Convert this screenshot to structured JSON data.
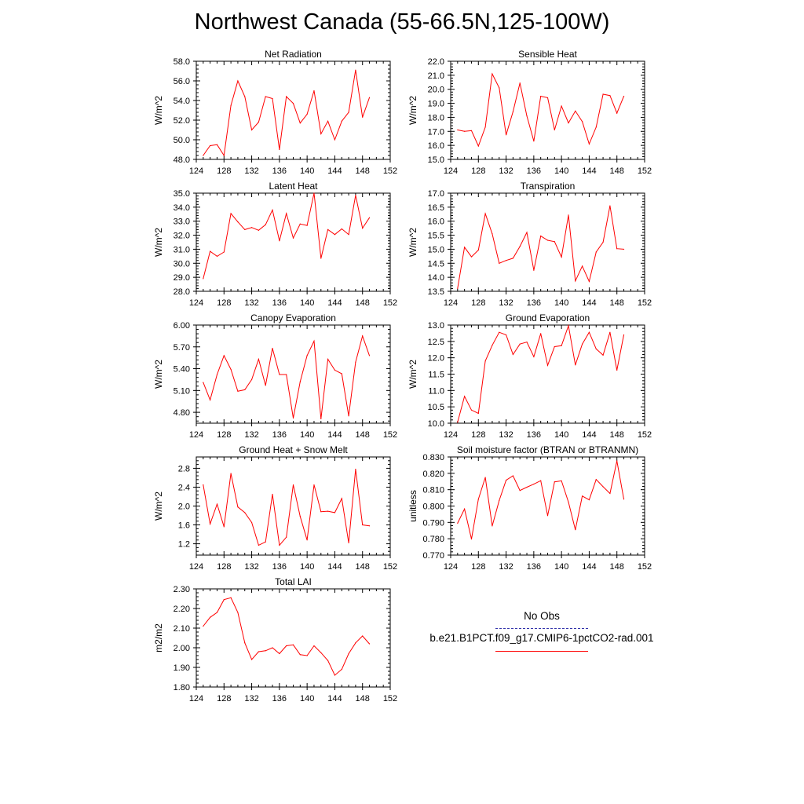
{
  "title": "Northwest Canada (55-66.5N,125-100W)",
  "colors": {
    "model_line": "#ff0000",
    "obs_line": "#3333aa"
  },
  "legend": {
    "entries": [
      {
        "label": "No Obs",
        "style": "dashed",
        "color": "#3333aa"
      },
      {
        "label": "b.e21.B1PCT.f09_g17.CMIP6-1pctCO2-rad.001",
        "style": "solid",
        "color": "#ff0000"
      }
    ]
  },
  "chart_data": [
    {
      "type": "line",
      "title": "Net Radiation",
      "ylabel": "W/m^2",
      "xlim": [
        124,
        152
      ],
      "ylim": [
        48.0,
        58.0
      ],
      "xticks": [
        "124",
        "128",
        "132",
        "136",
        "140",
        "144",
        "148",
        "152"
      ],
      "yticks": [
        "48.0",
        "50.0",
        "52.0",
        "54.0",
        "56.0",
        "58.0"
      ],
      "x": [
        125,
        126,
        127,
        128,
        129,
        130,
        131,
        132,
        133,
        134,
        135,
        136,
        137,
        138,
        139,
        140,
        141,
        142,
        143,
        144,
        145,
        146,
        147,
        148,
        149
      ],
      "series": [
        {
          "values": [
            48.4,
            49.4,
            49.5,
            48.4,
            53.5,
            56.0,
            54.4,
            51.0,
            51.8,
            54.4,
            54.2,
            49.0,
            54.4,
            53.7,
            51.7,
            52.6,
            55.0,
            50.6,
            51.9,
            50.0,
            51.9,
            52.8,
            57.1,
            52.3,
            54.3
          ]
        }
      ]
    },
    {
      "type": "line",
      "title": "Sensible Heat",
      "ylabel": "W/m^2",
      "xlim": [
        124,
        152
      ],
      "ylim": [
        15.0,
        22.0
      ],
      "xticks": [
        "124",
        "128",
        "132",
        "136",
        "140",
        "144",
        "148",
        "152"
      ],
      "yticks": [
        "15.0",
        "16.0",
        "17.0",
        "18.0",
        "19.0",
        "20.0",
        "21.0",
        "22.0"
      ],
      "x": [
        125,
        126,
        127,
        128,
        129,
        130,
        131,
        132,
        133,
        134,
        135,
        136,
        137,
        138,
        139,
        140,
        141,
        142,
        143,
        144,
        145,
        146,
        147,
        148,
        149
      ],
      "series": [
        {
          "values": [
            17.1,
            17.0,
            17.05,
            15.95,
            17.3,
            21.1,
            20.1,
            16.75,
            18.4,
            20.45,
            18.1,
            16.3,
            19.5,
            19.4,
            17.1,
            18.8,
            17.6,
            18.45,
            17.7,
            16.1,
            17.3,
            19.65,
            19.55,
            18.3,
            19.5
          ]
        }
      ]
    },
    {
      "type": "line",
      "title": "Latent Heat",
      "ylabel": "W/m^2",
      "xlim": [
        124,
        152
      ],
      "ylim": [
        28.0,
        35.0
      ],
      "xticks": [
        "124",
        "128",
        "132",
        "136",
        "140",
        "144",
        "148",
        "152"
      ],
      "yticks": [
        "28.0",
        "29.0",
        "30.0",
        "31.0",
        "32.0",
        "33.0",
        "34.0",
        "35.0"
      ],
      "x": [
        125,
        126,
        127,
        128,
        129,
        130,
        131,
        132,
        133,
        134,
        135,
        136,
        137,
        138,
        139,
        140,
        141,
        142,
        143,
        144,
        145,
        146,
        147,
        148,
        149
      ],
      "series": [
        {
          "values": [
            28.9,
            30.85,
            30.5,
            30.8,
            33.55,
            32.95,
            32.4,
            32.55,
            32.35,
            32.75,
            33.8,
            31.6,
            33.55,
            31.8,
            32.8,
            32.7,
            35.0,
            30.35,
            32.4,
            32.05,
            32.45,
            32.05,
            34.85,
            32.5,
            33.25
          ]
        }
      ]
    },
    {
      "type": "line",
      "title": "Transpiration",
      "ylabel": "W/m^2",
      "xlim": [
        124,
        152
      ],
      "ylim": [
        13.5,
        17.0
      ],
      "xticks": [
        "124",
        "128",
        "132",
        "136",
        "140",
        "144",
        "148",
        "152"
      ],
      "yticks": [
        "13.5",
        "14.0",
        "14.5",
        "15.0",
        "15.5",
        "16.0",
        "16.5",
        "17.0"
      ],
      "x": [
        125,
        126,
        127,
        128,
        129,
        130,
        131,
        132,
        133,
        134,
        135,
        136,
        137,
        138,
        139,
        140,
        141,
        142,
        143,
        144,
        145,
        146,
        147,
        148,
        149
      ],
      "series": [
        {
          "values": [
            13.6,
            15.07,
            14.73,
            14.97,
            16.27,
            15.55,
            14.5,
            14.6,
            14.68,
            15.1,
            15.6,
            14.25,
            15.47,
            15.32,
            15.27,
            14.72,
            16.22,
            13.87,
            14.4,
            13.85,
            14.9,
            15.25,
            16.55,
            15.02,
            15.0
          ]
        }
      ]
    },
    {
      "type": "line",
      "title": "Canopy Evaporation",
      "ylabel": "W/m^2",
      "xlim": [
        124,
        152
      ],
      "ylim": [
        4.65,
        6.0
      ],
      "xticks": [
        "124",
        "128",
        "132",
        "136",
        "140",
        "144",
        "148",
        "152"
      ],
      "yticks": [
        "4.80",
        "5.10",
        "5.40",
        "5.70",
        "6.00"
      ],
      "x": [
        125,
        126,
        127,
        128,
        129,
        130,
        131,
        132,
        133,
        134,
        135,
        136,
        137,
        138,
        139,
        140,
        141,
        142,
        143,
        144,
        145,
        146,
        147,
        148,
        149
      ],
      "series": [
        {
          "values": [
            5.21,
            4.97,
            5.32,
            5.58,
            5.39,
            5.09,
            5.11,
            5.25,
            5.53,
            5.17,
            5.68,
            5.32,
            5.32,
            4.72,
            5.22,
            5.58,
            5.78,
            4.71,
            5.53,
            5.38,
            5.33,
            4.75,
            5.49,
            5.85,
            5.58
          ]
        }
      ]
    },
    {
      "type": "line",
      "title": "Ground Evaporation",
      "ylabel": "W/m^2",
      "xlim": [
        124,
        152
      ],
      "ylim": [
        10.0,
        13.0
      ],
      "xticks": [
        "124",
        "128",
        "132",
        "136",
        "140",
        "144",
        "148",
        "152"
      ],
      "yticks": [
        "10.0",
        "10.5",
        "11.0",
        "11.5",
        "12.0",
        "12.5",
        "13.0"
      ],
      "x": [
        125,
        126,
        127,
        128,
        129,
        130,
        131,
        132,
        133,
        134,
        135,
        136,
        137,
        138,
        139,
        140,
        141,
        142,
        143,
        144,
        145,
        146,
        147,
        148,
        149
      ],
      "series": [
        {
          "values": [
            10.03,
            10.82,
            10.4,
            10.3,
            11.9,
            12.38,
            12.78,
            12.7,
            12.1,
            12.42,
            12.48,
            12.03,
            12.74,
            11.77,
            12.34,
            12.37,
            12.98,
            11.78,
            12.42,
            12.78,
            12.27,
            12.08,
            12.78,
            11.62,
            12.7
          ]
        }
      ]
    },
    {
      "type": "line",
      "title": "Ground Heat + Snow Melt",
      "ylabel": "W/m^2",
      "xlim": [
        124,
        152
      ],
      "ylim": [
        0.96,
        3.04
      ],
      "xticks": [
        "124",
        "128",
        "132",
        "136",
        "140",
        "144",
        "148",
        "152"
      ],
      "yticks": [
        "1.2",
        "1.6",
        "2.0",
        "2.4",
        "2.8"
      ],
      "x": [
        125,
        126,
        127,
        128,
        129,
        130,
        131,
        132,
        133,
        134,
        135,
        136,
        137,
        138,
        139,
        140,
        141,
        142,
        143,
        144,
        145,
        146,
        147,
        148,
        149
      ],
      "series": [
        {
          "values": [
            2.45,
            1.62,
            2.04,
            1.56,
            2.69,
            1.98,
            1.86,
            1.65,
            1.17,
            1.24,
            2.25,
            1.17,
            1.34,
            2.45,
            1.78,
            1.28,
            2.45,
            1.88,
            1.89,
            1.86,
            2.16,
            1.22,
            2.78,
            1.6,
            1.58
          ]
        }
      ]
    },
    {
      "type": "line",
      "title": "Soil moisture factor (BTRAN or BTRANMN)",
      "ylabel": "unitless",
      "xlim": [
        124,
        152
      ],
      "ylim": [
        0.77,
        0.83
      ],
      "xticks": [
        "124",
        "128",
        "132",
        "136",
        "140",
        "144",
        "148",
        "152"
      ],
      "yticks": [
        "0.770",
        "0.780",
        "0.790",
        "0.800",
        "0.810",
        "0.820",
        "0.830"
      ],
      "x": [
        125,
        126,
        127,
        128,
        129,
        130,
        131,
        132,
        133,
        134,
        135,
        136,
        137,
        138,
        139,
        140,
        141,
        142,
        143,
        144,
        145,
        146,
        147,
        148,
        149
      ],
      "series": [
        {
          "values": [
            0.7895,
            0.7982,
            0.7798,
            0.8042,
            0.8175,
            0.7878,
            0.8034,
            0.8158,
            0.8185,
            0.8095,
            0.8115,
            0.8134,
            0.8155,
            0.7941,
            0.8148,
            0.8154,
            0.8024,
            0.7855,
            0.8061,
            0.8038,
            0.8162,
            0.8118,
            0.8077,
            0.8276,
            0.8042
          ]
        }
      ]
    },
    {
      "type": "line",
      "title": "Total LAI",
      "ylabel": "m2/m2",
      "xlim": [
        124,
        152
      ],
      "ylim": [
        1.8,
        2.3
      ],
      "xticks": [
        "124",
        "128",
        "132",
        "136",
        "140",
        "144",
        "148",
        "152"
      ],
      "yticks": [
        "1.80",
        "1.90",
        "2.00",
        "2.10",
        "2.20",
        "2.30"
      ],
      "x": [
        125,
        126,
        127,
        128,
        129,
        130,
        131,
        132,
        133,
        134,
        135,
        136,
        137,
        138,
        139,
        140,
        141,
        142,
        143,
        144,
        145,
        146,
        147,
        148,
        149
      ],
      "series": [
        {
          "values": [
            2.11,
            2.155,
            2.18,
            2.245,
            2.255,
            2.18,
            2.025,
            1.94,
            1.98,
            1.985,
            2.0,
            1.97,
            2.01,
            2.015,
            1.965,
            1.96,
            2.01,
            1.975,
            1.935,
            1.86,
            1.89,
            1.97,
            2.025,
            2.06,
            2.02
          ]
        }
      ]
    }
  ]
}
